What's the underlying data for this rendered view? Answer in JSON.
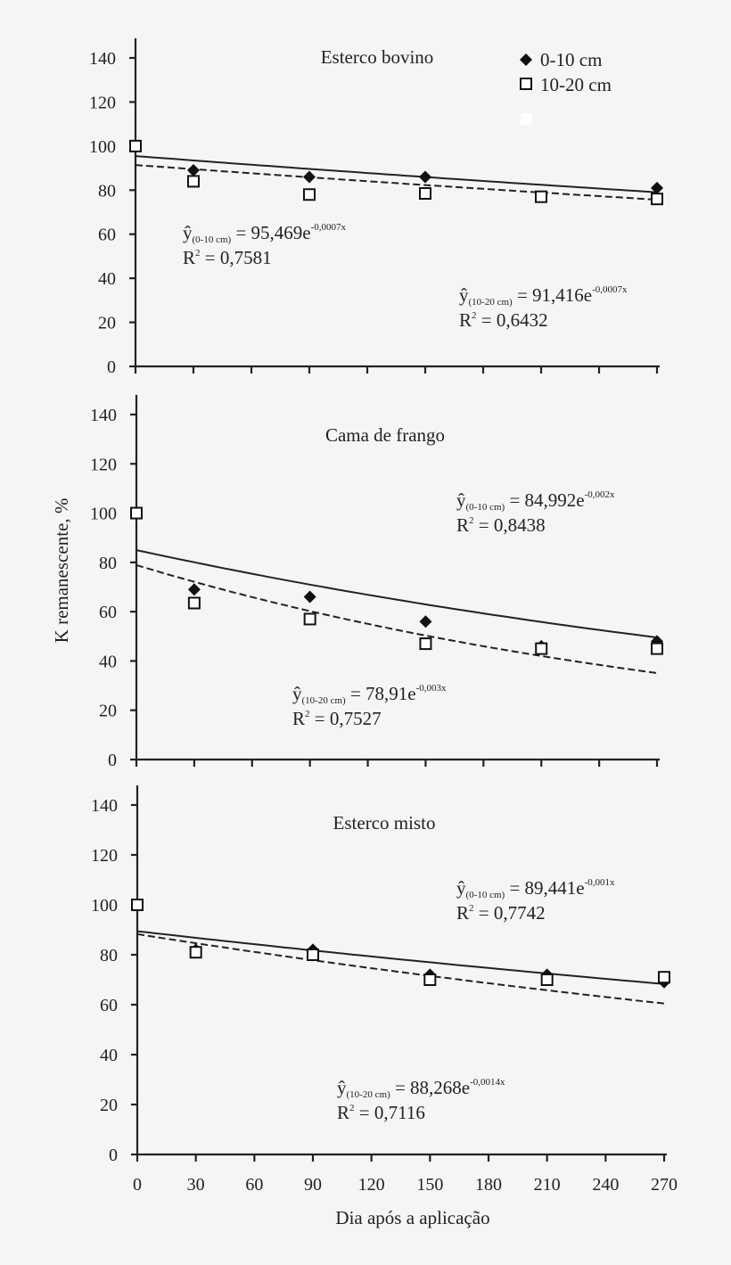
{
  "chart_data": [
    {
      "type": "scatter",
      "title": "Esterco bovino",
      "ylim": [
        0,
        140
      ],
      "xlim": [
        0,
        270
      ],
      "yticks": [
        "0",
        "20",
        "40",
        "60",
        "80",
        "100",
        "120",
        "140"
      ],
      "legend": {
        "placement": "top-right",
        "entries": [
          "0-10 cm",
          "10-20 cm"
        ]
      },
      "series": [
        {
          "name": "0-10 cm",
          "marker": "diamond-filled",
          "x": [
            0,
            30,
            90,
            150,
            270
          ],
          "y": [
            100,
            89,
            86,
            86,
            81
          ],
          "fit": {
            "a": 95.469,
            "b": -0.0007,
            "style": "solid",
            "lhs": "ŷ",
            "sub": "(0-10 cm)",
            "rhs": " = 95,469e",
            "sup": "-0,0007x",
            "r2_label": "R",
            "r2_sup": "2",
            "r2_value": " = 0,7581"
          }
        },
        {
          "name": "10-20 cm",
          "marker": "square-open",
          "x": [
            0,
            30,
            90,
            150,
            210,
            270
          ],
          "y": [
            100,
            84,
            78,
            78.5,
            77,
            76
          ],
          "fit": {
            "a": 91.416,
            "b": -0.0007,
            "style": "dashed",
            "lhs": "ŷ",
            "sub": "(10-20 cm)",
            "rhs": " = 91,416e",
            "sup": "-0,0007x",
            "r2_label": "R",
            "r2_sup": "2",
            "r2_value": " = 0,6432"
          }
        }
      ]
    },
    {
      "type": "scatter",
      "title": "Cama de frango",
      "ylim": [
        0,
        140
      ],
      "xlim": [
        0,
        270
      ],
      "yticks": [
        "0",
        "20",
        "40",
        "60",
        "80",
        "100",
        "120",
        "140"
      ],
      "series": [
        {
          "name": "0-10 cm",
          "marker": "diamond-filled",
          "x": [
            0,
            30,
            90,
            150,
            210,
            270
          ],
          "y": [
            100,
            69,
            66,
            56,
            46,
            48
          ],
          "fit": {
            "a": 84.992,
            "b": -0.002,
            "style": "solid",
            "lhs": "ŷ",
            "sub": "(0-10 cm)",
            "rhs": " = 84,992e",
            "sup": "-0,002x",
            "r2_label": "R",
            "r2_sup": "2",
            "r2_value": " = 0,8438"
          }
        },
        {
          "name": "10-20 cm",
          "marker": "square-open",
          "x": [
            0,
            30,
            90,
            150,
            210,
            270
          ],
          "y": [
            100,
            63.5,
            57,
            47,
            45,
            45
          ],
          "fit": {
            "a": 78.91,
            "b": -0.003,
            "style": "dashed",
            "lhs": "ŷ",
            "sub": "(10-20 cm)",
            "rhs": " = 78,91e",
            "sup": "-0,003x",
            "r2_label": "R",
            "r2_sup": "2",
            "r2_value": " = 0,7527"
          }
        }
      ]
    },
    {
      "type": "scatter",
      "title": "Esterco misto",
      "ylim": [
        0,
        140
      ],
      "xlim": [
        0,
        270
      ],
      "yticks": [
        "0",
        "20",
        "40",
        "60",
        "80",
        "100",
        "120",
        "140"
      ],
      "xticks": [
        "0",
        "30",
        "60",
        "90",
        "120",
        "150",
        "180",
        "210",
        "240",
        "270"
      ],
      "xlabel": "Dia após a aplicação",
      "series": [
        {
          "name": "0-10 cm",
          "marker": "diamond-filled",
          "x": [
            0,
            30,
            90,
            150,
            210,
            270
          ],
          "y": [
            100,
            82,
            82,
            72,
            72,
            69
          ],
          "fit": {
            "a": 89.441,
            "b": -0.001,
            "style": "solid",
            "lhs": "ŷ",
            "sub": "(0-10 cm)",
            "rhs": " = 89,441e",
            "sup": "-0,001x",
            "r2_label": "R",
            "r2_sup": "2",
            "r2_value": " = 0,7742"
          }
        },
        {
          "name": "10-20 cm",
          "marker": "square-open",
          "x": [
            0,
            30,
            90,
            150,
            210,
            270
          ],
          "y": [
            100,
            81,
            80,
            70,
            70,
            71
          ],
          "fit": {
            "a": 88.268,
            "b": -0.0014,
            "style": "dashed",
            "lhs": "ŷ",
            "sub": "(10-20 cm)",
            "rhs": " = 88,268e",
            "sup": "-0,0014x",
            "r2_label": "R",
            "r2_sup": "2",
            "r2_value": " = 0,7116"
          }
        }
      ]
    }
  ],
  "ylabel": "K remanescente, %",
  "colors": {
    "background": "#f5f5f5",
    "ink": "#222222"
  }
}
